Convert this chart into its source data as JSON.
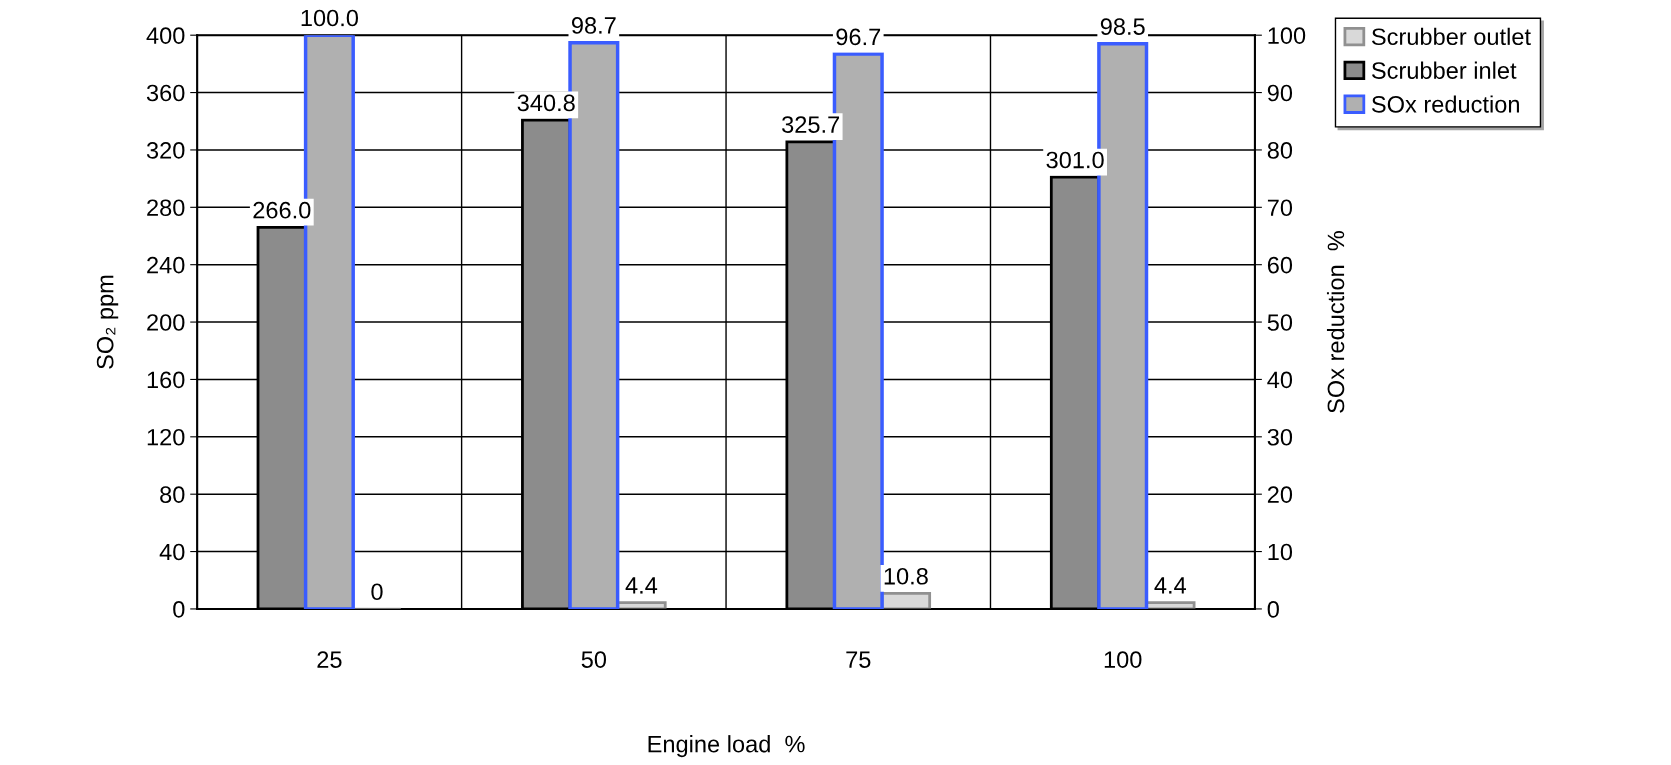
{
  "chart_data": {
    "type": "bar",
    "xlabel": "Engine load  %",
    "ylabel": "SO₂ ppm",
    "y2label": "SOx reduction  %",
    "categories": [
      "25",
      "50",
      "75",
      "100"
    ],
    "series": [
      {
        "name": "Scrubber inlet",
        "color": "#8c8c8c",
        "values": [
          266.0,
          340.8,
          325.7,
          301.0
        ],
        "value_labels": [
          "266.0",
          "340.8",
          "325.7",
          "301.0"
        ]
      },
      {
        "name": "SOx reduction",
        "color": "#b0b0b0",
        "axis": "y2",
        "values": [
          100.0,
          98.7,
          96.7,
          98.5
        ],
        "value_labels": [
          "100.0",
          "98.7",
          "96.7",
          "98.5"
        ]
      },
      {
        "name": "Scrubber outlet",
        "color": "#d9d9d9",
        "values": [
          0,
          4.4,
          10.8,
          4.4
        ],
        "value_labels": [
          "0",
          "4.4",
          "10.8",
          "4.4"
        ]
      }
    ],
    "ylim": [
      0,
      400
    ],
    "yticks": [
      0,
      40,
      80,
      120,
      160,
      200,
      240,
      280,
      320,
      360,
      400
    ],
    "y2lim": [
      0,
      100
    ],
    "y2ticks": [
      0,
      10,
      20,
      30,
      40,
      50,
      60,
      70,
      80,
      90,
      100
    ],
    "grid": true,
    "legend": "top right"
  }
}
